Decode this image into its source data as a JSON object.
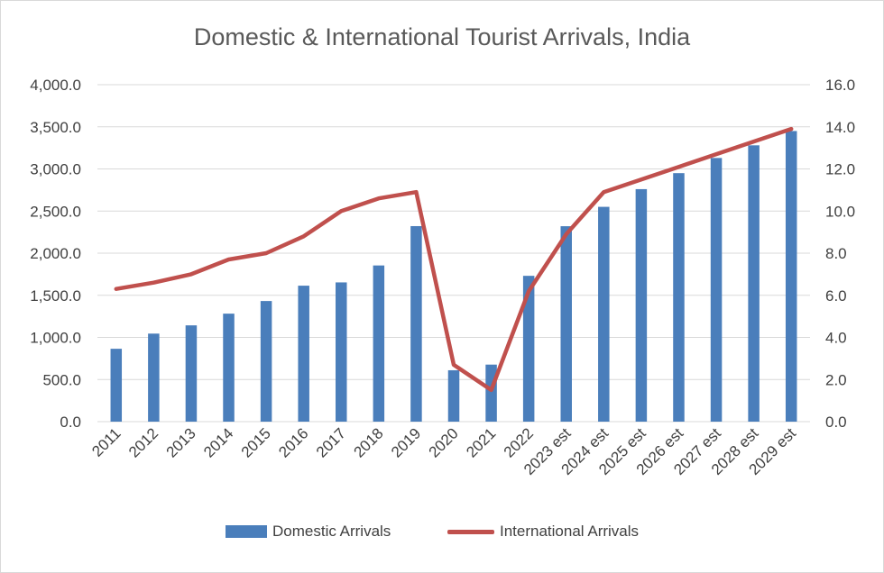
{
  "chart_data": {
    "type": "bar+line",
    "title": "Domestic & International Tourist Arrivals, India",
    "categories": [
      "2011",
      "2012",
      "2013",
      "2014",
      "2015",
      "2016",
      "2017",
      "2018",
      "2019",
      "2020",
      "2021",
      "2022",
      "2023 est",
      "2024 est",
      "2025 est",
      "2026 est",
      "2027 est",
      "2028 est",
      "2029 est"
    ],
    "series": [
      {
        "name": "Domestic Arrivals",
        "type": "bar",
        "axis": "left",
        "color": "#4a7ebb",
        "values": [
          865,
          1045,
          1143,
          1282,
          1432,
          1614,
          1653,
          1854,
          2321,
          610,
          677,
          1731,
          2320,
          2550,
          2760,
          2950,
          3130,
          3280,
          3450
        ]
      },
      {
        "name": "International Arrivals",
        "type": "line",
        "axis": "right",
        "color": "#c0504d",
        "values": [
          6.3,
          6.6,
          7.0,
          7.7,
          8.0,
          8.8,
          10.0,
          10.6,
          10.9,
          2.7,
          1.5,
          6.2,
          8.9,
          10.9,
          11.5,
          12.1,
          12.7,
          13.3,
          13.9
        ]
      }
    ],
    "y_left": {
      "min": 0,
      "max": 4000,
      "step": 500,
      "tick_labels": [
        "0.0",
        "500.0",
        "1,000.0",
        "1,500.0",
        "2,000.0",
        "2,500.0",
        "3,000.0",
        "3,500.0",
        "4,000.0"
      ]
    },
    "y_right": {
      "min": 0,
      "max": 16,
      "step": 2,
      "tick_labels": [
        "0.0",
        "2.0",
        "4.0",
        "6.0",
        "8.0",
        "10.0",
        "12.0",
        "14.0",
        "16.0"
      ]
    },
    "grid": true,
    "legend_position": "bottom"
  }
}
